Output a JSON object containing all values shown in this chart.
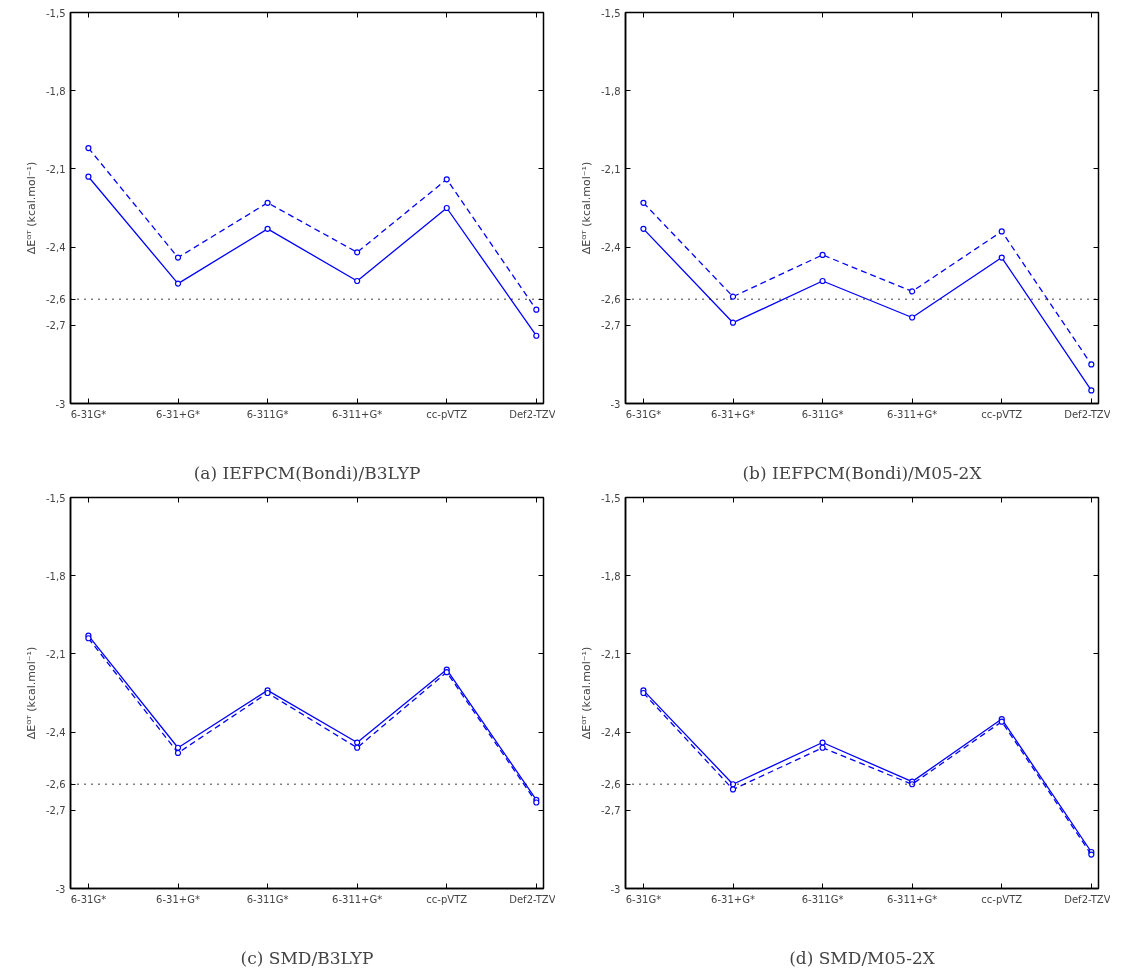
{
  "chart_data": [
    {
      "type": "line",
      "xlabel": "(a) IEFPCM(Bondi)/B3LYP",
      "ylabel": "ΔEᴳᵀ (kcal.mol⁻¹)",
      "categories": [
        "6-31G*",
        "6-31+G*",
        "6-311G*",
        "6-311+G*",
        "cc-pVTZ",
        "Def2-TZV"
      ],
      "series": [
        {
          "color": "#0000ff",
          "line_style": "solid",
          "values": [
            -2.13,
            -2.54,
            -2.33,
            -2.53,
            -2.25,
            -2.74
          ]
        },
        {
          "color": "#0000ff",
          "line_style": "dashed",
          "values": [
            -2.02,
            -2.44,
            -2.23,
            -2.42,
            -2.14,
            -2.64
          ]
        }
      ],
      "ylim": [
        -3,
        -1.5
      ],
      "yticks": [
        -3,
        {
          "value": -2.7,
          "label": "-2,7"
        },
        {
          "value": -2.6,
          "label": "-2,6"
        },
        {
          "value": -2.4,
          "label": "-2,4"
        },
        {
          "value": -2.1,
          "label": "-2,1"
        },
        {
          "value": -1.8,
          "label": "-1,8"
        },
        {
          "value": -1.5,
          "label": "-1,5"
        }
      ],
      "ref_lines": [
        {
          "axis": "y",
          "value": -2.6,
          "color": "#000000",
          "line_style": "dotted"
        }
      ],
      "marker": "circle",
      "grid": false
    },
    {
      "type": "line",
      "xlabel": "(b) IEFPCM(Bondi)/M05-2X",
      "ylabel": "ΔEᴳᵀ (kcal.mol⁻¹)",
      "categories": [
        "6-31G*",
        "6-31+G*",
        "6-311G*",
        "6-311+G*",
        "cc-pVTZ",
        "Def2-TZV"
      ],
      "series": [
        {
          "color": "#0000ff",
          "line_style": "solid",
          "values": [
            -2.33,
            -2.69,
            -2.53,
            -2.67,
            -2.44,
            -2.95
          ]
        },
        {
          "color": "#0000ff",
          "line_style": "dashed",
          "values": [
            -2.23,
            -2.59,
            -2.43,
            -2.57,
            -2.34,
            -2.85
          ]
        }
      ],
      "ylim": [
        -3,
        -1.5
      ],
      "yticks": [
        -3,
        {
          "value": -2.7,
          "label": "-2,7"
        },
        {
          "value": -2.6,
          "label": "-2,6"
        },
        {
          "value": -2.4,
          "label": "-2,4"
        },
        {
          "value": -2.1,
          "label": "-2,1"
        },
        {
          "value": -1.8,
          "label": "-1,8"
        },
        {
          "value": -1.5,
          "label": "-1,5"
        }
      ],
      "ref_lines": [
        {
          "axis": "y",
          "value": -2.6,
          "color": "#000000",
          "line_style": "dotted"
        }
      ],
      "marker": "circle",
      "grid": false
    },
    {
      "type": "line",
      "xlabel": "(c) SMD/B3LYP",
      "ylabel": "ΔEᴳᵀ (kcal.mol⁻¹)",
      "categories": [
        "6-31G*",
        "6-31+G*",
        "6-311G*",
        "6-311+G*",
        "cc-pVTZ",
        "Def2-TZV"
      ],
      "series": [
        {
          "color": "#0000ff",
          "line_style": "solid",
          "values": [
            -2.03,
            -2.46,
            -2.24,
            -2.44,
            -2.16,
            -2.66
          ]
        },
        {
          "color": "#0000ff",
          "line_style": "dashed",
          "values": [
            -2.04,
            -2.48,
            -2.25,
            -2.46,
            -2.17,
            -2.67
          ]
        }
      ],
      "ylim": [
        -3,
        -1.5
      ],
      "yticks": [
        -3,
        {
          "value": -2.7,
          "label": "-2,7"
        },
        {
          "value": -2.6,
          "label": "-2,6"
        },
        {
          "value": -2.4,
          "label": "-2,4"
        },
        {
          "value": -2.1,
          "label": "-2,1"
        },
        {
          "value": -1.8,
          "label": "-1,8"
        },
        {
          "value": -1.5,
          "label": "-1,5"
        }
      ],
      "ref_lines": [
        {
          "axis": "y",
          "value": -2.6,
          "color": "#000000",
          "line_style": "dotted"
        }
      ],
      "marker": "circle",
      "grid": false
    },
    {
      "type": "line",
      "xlabel": "(d) SMD/M05-2X",
      "ylabel": "ΔEᴳᵀ (kcal.mol⁻¹)",
      "categories": [
        "6-31G*",
        "6-31+G*",
        "6-311G*",
        "6-311+G*",
        "cc-pVTZ",
        "Def2-TZV"
      ],
      "series": [
        {
          "color": "#0000ff",
          "line_style": "solid",
          "values": [
            -2.24,
            -2.6,
            -2.44,
            -2.59,
            -2.35,
            -2.86
          ]
        },
        {
          "color": "#0000ff",
          "line_style": "dashed",
          "values": [
            -2.25,
            -2.62,
            -2.46,
            -2.6,
            -2.36,
            -2.87
          ]
        }
      ],
      "ylim": [
        -3,
        -1.5
      ],
      "yticks": [
        -3,
        {
          "value": -2.7,
          "label": "-2,7"
        },
        {
          "value": -2.6,
          "label": "-2,6"
        },
        {
          "value": -2.4,
          "label": "-2,4"
        },
        {
          "value": -2.1,
          "label": "-2,1"
        },
        {
          "value": -1.8,
          "label": "-1,8"
        },
        {
          "value": -1.5,
          "label": "-1,5"
        }
      ],
      "ref_lines": [
        {
          "axis": "y",
          "value": -2.6,
          "color": "#000000",
          "line_style": "dotted"
        }
      ],
      "marker": "circle",
      "grid": false
    }
  ]
}
